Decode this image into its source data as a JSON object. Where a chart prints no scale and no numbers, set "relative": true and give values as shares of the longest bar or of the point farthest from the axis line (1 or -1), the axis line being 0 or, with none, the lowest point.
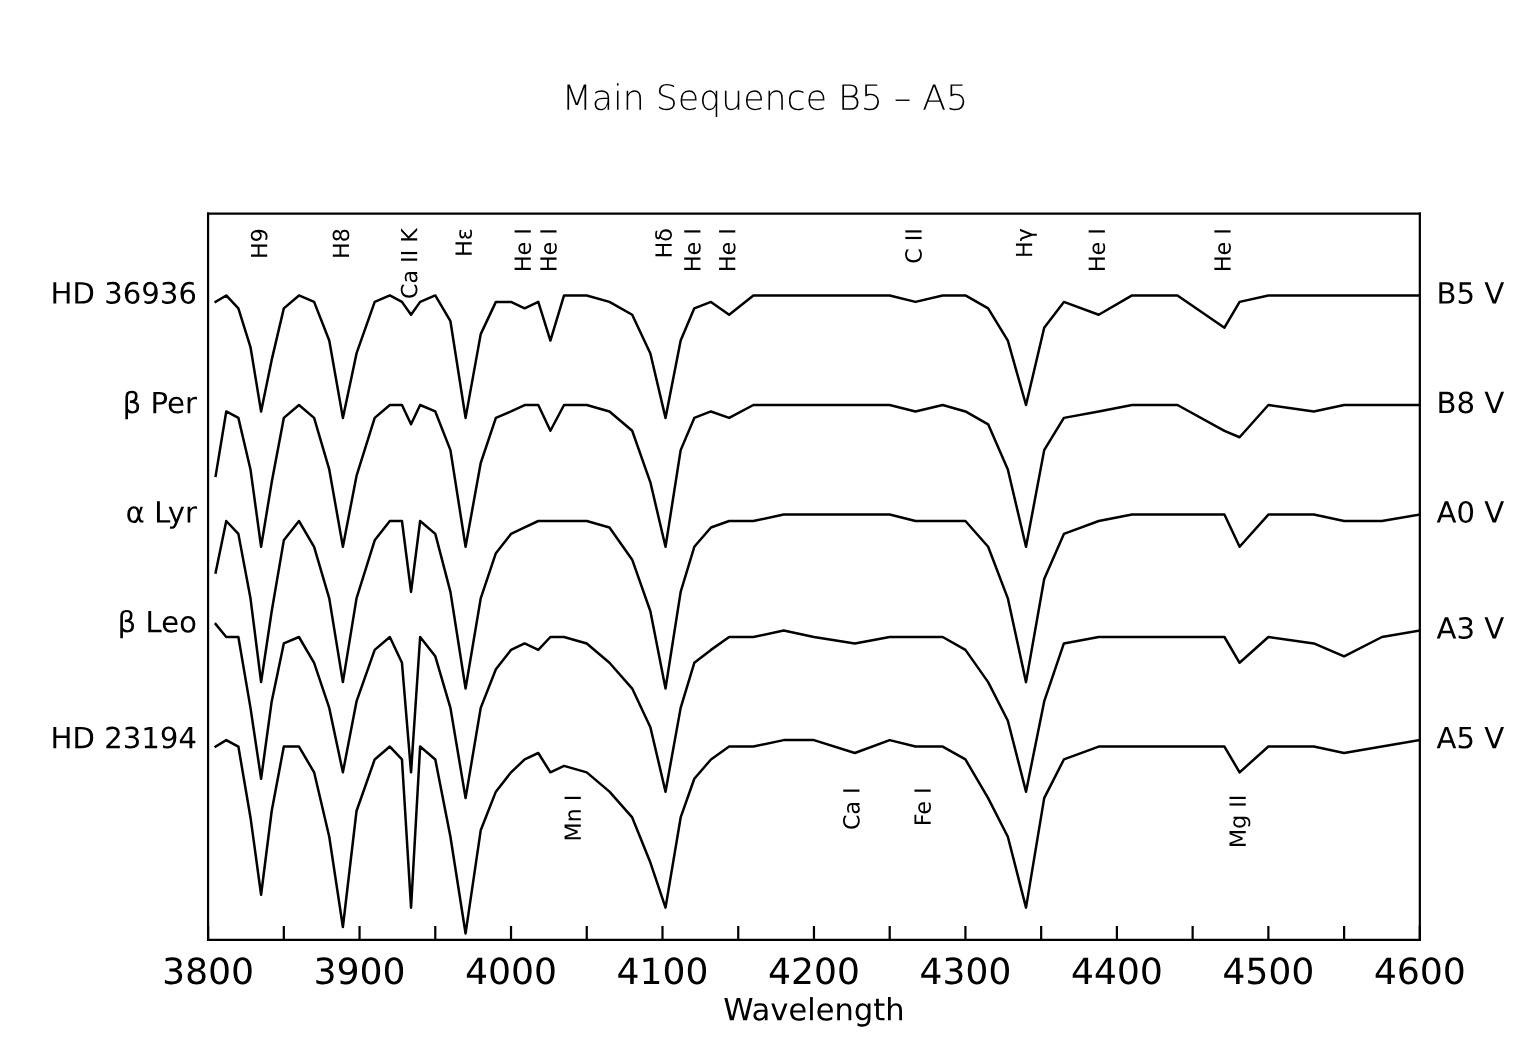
{
  "chart_data": {
    "type": "line",
    "title": "Main Sequence B5 – A5",
    "xlabel": "Wavelength",
    "relative": true,
    "grid": false,
    "legend": false,
    "xlim": [
      3800,
      4600
    ],
    "xticks": [
      3800,
      {
        "value": 3850,
        "label": null
      },
      3900,
      {
        "value": 3950,
        "label": null
      },
      4000,
      {
        "value": 4050,
        "label": null
      },
      4100,
      {
        "value": 4150,
        "label": null
      },
      4200,
      {
        "value": 4250,
        "label": null
      },
      4300,
      {
        "value": 4350,
        "label": null
      },
      4400,
      {
        "value": 4450,
        "label": null
      },
      4500,
      {
        "value": 4550,
        "label": null
      },
      4600
    ],
    "x": [
      3805,
      3812,
      3820,
      3828,
      3835,
      3842,
      3850,
      3860,
      3870,
      3880,
      3889,
      3898,
      3910,
      3920,
      3928,
      3934,
      3940,
      3950,
      3960,
      3970,
      3980,
      3990,
      4000,
      4009,
      4018,
      4026,
      4035,
      4050,
      4065,
      4080,
      4092,
      4102,
      4112,
      4121,
      4132,
      4144,
      4160,
      4180,
      4200,
      4227,
      4250,
      4267,
      4285,
      4300,
      4315,
      4328,
      4340,
      4352,
      4365,
      4388,
      4410,
      4440,
      4471,
      4481,
      4500,
      4530,
      4550,
      4575,
      4600
    ],
    "series": [
      {
        "name": "HD 36936",
        "color": "#000000",
        "values": [
          0.99,
          1.0,
          0.98,
          0.92,
          0.82,
          0.9,
          0.98,
          1.0,
          0.99,
          0.93,
          0.81,
          0.91,
          0.99,
          1.0,
          0.99,
          0.97,
          0.99,
          1.0,
          0.96,
          0.81,
          0.94,
          0.99,
          0.99,
          0.98,
          0.99,
          0.93,
          1.0,
          1.0,
          0.99,
          0.97,
          0.91,
          0.81,
          0.93,
          0.98,
          0.99,
          0.97,
          1.0,
          1.0,
          1.0,
          1.0,
          1.0,
          0.99,
          1.0,
          1.0,
          0.98,
          0.93,
          0.83,
          0.95,
          0.99,
          0.97,
          1.0,
          1.0,
          0.95,
          0.99,
          1.0,
          1.0,
          1.0,
          1.0,
          1.0
        ]
      },
      {
        "name": "β Per",
        "color": "#000000",
        "values": [
          0.72,
          0.82,
          0.81,
          0.73,
          0.61,
          0.71,
          0.81,
          0.83,
          0.81,
          0.73,
          0.61,
          0.72,
          0.81,
          0.83,
          0.83,
          0.8,
          0.83,
          0.82,
          0.76,
          0.61,
          0.74,
          0.81,
          0.82,
          0.83,
          0.83,
          0.79,
          0.83,
          0.83,
          0.82,
          0.79,
          0.71,
          0.61,
          0.76,
          0.81,
          0.82,
          0.81,
          0.83,
          0.83,
          0.83,
          0.83,
          0.83,
          0.82,
          0.83,
          0.82,
          0.8,
          0.73,
          0.61,
          0.76,
          0.81,
          0.82,
          0.83,
          0.83,
          0.79,
          0.78,
          0.83,
          0.82,
          0.83,
          0.83,
          0.83
        ]
      },
      {
        "name": "α Lyr",
        "color": "#000000",
        "values": [
          0.57,
          0.65,
          0.63,
          0.53,
          0.4,
          0.51,
          0.62,
          0.65,
          0.61,
          0.53,
          0.4,
          0.53,
          0.62,
          0.65,
          0.65,
          0.54,
          0.65,
          0.63,
          0.54,
          0.39,
          0.53,
          0.6,
          0.63,
          0.64,
          0.65,
          0.65,
          0.65,
          0.65,
          0.64,
          0.59,
          0.51,
          0.39,
          0.54,
          0.61,
          0.64,
          0.65,
          0.65,
          0.66,
          0.66,
          0.66,
          0.66,
          0.65,
          0.65,
          0.65,
          0.61,
          0.53,
          0.4,
          0.56,
          0.63,
          0.65,
          0.66,
          0.66,
          0.66,
          0.61,
          0.66,
          0.66,
          0.65,
          0.65,
          0.66
        ]
      },
      {
        "name": "β Leo",
        "color": "#000000",
        "values": [
          0.49,
          0.47,
          0.47,
          0.36,
          0.25,
          0.37,
          0.46,
          0.47,
          0.43,
          0.36,
          0.26,
          0.37,
          0.45,
          0.47,
          0.43,
          0.26,
          0.47,
          0.44,
          0.36,
          0.22,
          0.36,
          0.42,
          0.45,
          0.46,
          0.45,
          0.47,
          0.47,
          0.46,
          0.43,
          0.39,
          0.33,
          0.23,
          0.36,
          0.43,
          0.45,
          0.47,
          0.47,
          0.48,
          0.47,
          0.46,
          0.47,
          0.47,
          0.47,
          0.45,
          0.4,
          0.34,
          0.23,
          0.37,
          0.46,
          0.47,
          0.47,
          0.47,
          0.47,
          0.43,
          0.47,
          0.46,
          0.44,
          0.47,
          0.48
        ]
      },
      {
        "name": "HD 23194",
        "color": "#000000",
        "values": [
          0.3,
          0.31,
          0.3,
          0.19,
          0.07,
          0.2,
          0.3,
          0.3,
          0.26,
          0.16,
          0.02,
          0.2,
          0.28,
          0.3,
          0.28,
          0.05,
          0.3,
          0.28,
          0.16,
          0.01,
          0.17,
          0.23,
          0.26,
          0.28,
          0.29,
          0.26,
          0.27,
          0.26,
          0.23,
          0.19,
          0.12,
          0.05,
          0.19,
          0.25,
          0.28,
          0.3,
          0.3,
          0.31,
          0.31,
          0.29,
          0.31,
          0.3,
          0.3,
          0.28,
          0.22,
          0.16,
          0.05,
          0.22,
          0.28,
          0.3,
          0.3,
          0.3,
          0.3,
          0.26,
          0.3,
          0.3,
          0.29,
          0.3,
          0.31
        ]
      }
    ],
    "annotations": [
      "B5 V",
      "B8 V",
      "A0 V",
      "A3 V",
      "A5 V",
      "H9",
      "H8",
      "Ca II K",
      "Hε",
      "He I",
      "He I",
      "Hδ",
      "He I",
      "He I",
      "C II",
      "Hγ",
      "He I",
      "He I",
      "Mn I",
      "Ca I",
      "Fe I",
      "Mg II"
    ]
  }
}
